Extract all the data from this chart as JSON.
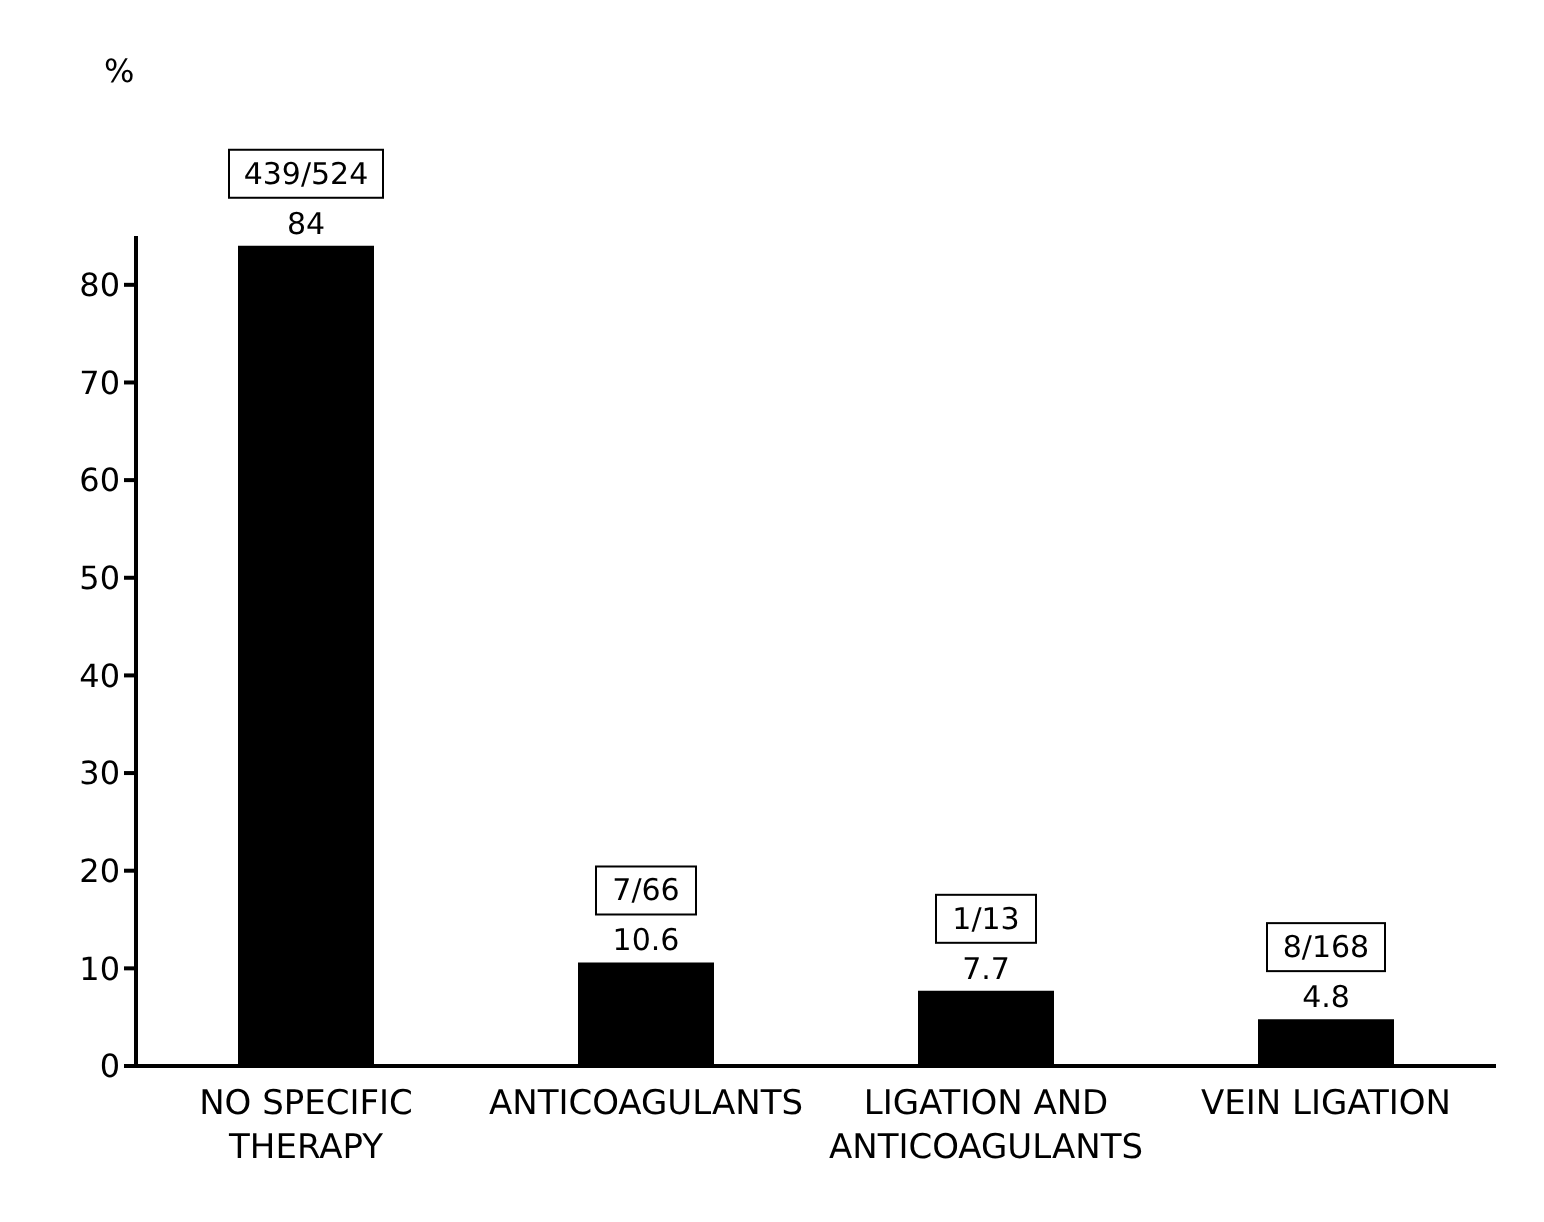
{
  "chart_data": {
    "type": "bar",
    "ylabel": "%",
    "categories": [
      "NO SPECIFIC THERAPY",
      "ANTICOAGULANTS",
      "LIGATION AND ANTICOAGULANTS",
      "VEIN LIGATION"
    ],
    "values": [
      84,
      10.6,
      7.7,
      4.8
    ],
    "color": "#000000",
    "data_labels": true,
    "ylim": [
      0,
      85
    ],
    "yticks": [
      0,
      10,
      20,
      30,
      40,
      50,
      60,
      70,
      80
    ],
    "annotations": [
      "439/524",
      "7/66",
      "1/13",
      "8/168"
    ]
  }
}
